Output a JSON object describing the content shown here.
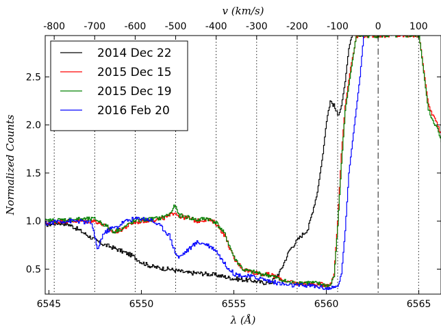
{
  "chart_data": {
    "type": "line",
    "title": "",
    "xlabel": "λ (Å)",
    "ylabel": "Normalized Counts",
    "x2label": "v (km/s)",
    "xlim": [
      6544.8,
      6566.2
    ],
    "ylim": [
      0.24,
      2.93
    ],
    "x_ticks": [
      6545,
      6550,
      6555,
      6560,
      6565
    ],
    "x_tick_labels": [
      "6545",
      "6550",
      "6555",
      "6560",
      "6565"
    ],
    "y_ticks": [
      0.5,
      1.0,
      1.5,
      2.0,
      2.5
    ],
    "y_tick_labels": [
      "0.5",
      "1.0",
      "1.5",
      "2.0",
      "2.5"
    ],
    "v_rest_wavelength": 6562.8,
    "v_ticks": [
      -800,
      -700,
      -600,
      -500,
      -400,
      -300,
      -200,
      -100,
      0,
      100
    ],
    "v_tick_labels": [
      "-800",
      "-700",
      "-600",
      "-500",
      "-400",
      "-300",
      "-200",
      "-100",
      "0",
      "100"
    ],
    "grid": "vertical dotted lines at velocity ticks; dash-dot line at 0 km/s",
    "legend_position": "top-left",
    "series": [
      {
        "name": "2014 Dec 22",
        "color": "#000000",
        "x": [
          6544.8,
          6545.5,
          6546.0,
          6546.5,
          6547.0,
          6547.5,
          6547.9,
          6548.2,
          6548.5,
          6549.0,
          6549.5,
          6550.0,
          6550.5,
          6551.0,
          6551.5,
          6552.0,
          6552.5,
          6553.0,
          6553.5,
          6554.0,
          6554.5,
          6555.0,
          6555.5,
          6556.0,
          6556.5,
          6557.0,
          6557.5,
          6558.0,
          6558.5,
          6559.0,
          6559.5,
          6559.8,
          6560.0,
          6560.2,
          6560.4,
          6560.6,
          6560.8,
          6561.0,
          6561.2,
          6561.4
        ],
        "y": [
          0.96,
          0.98,
          0.97,
          0.92,
          0.86,
          0.8,
          0.76,
          0.74,
          0.72,
          0.68,
          0.64,
          0.57,
          0.53,
          0.51,
          0.5,
          0.48,
          0.46,
          0.46,
          0.45,
          0.44,
          0.42,
          0.4,
          0.39,
          0.38,
          0.36,
          0.36,
          0.48,
          0.7,
          0.82,
          0.92,
          1.3,
          1.7,
          2.05,
          2.25,
          2.2,
          2.1,
          2.2,
          2.45,
          2.8,
          2.93
        ]
      },
      {
        "name": "2015 Dec 15",
        "color": "#ff0000",
        "x": [
          6544.8,
          6545.5,
          6546.5,
          6547.5,
          6548.0,
          6548.5,
          6549.0,
          6549.5,
          6550.0,
          6550.5,
          6551.0,
          6551.5,
          6551.8,
          6552.0,
          6552.5,
          6553.0,
          6553.5,
          6554.0,
          6554.5,
          6555.0,
          6555.5,
          6556.0,
          6556.5,
          6557.0,
          6557.5,
          6558.0,
          6558.5,
          6559.0,
          6559.5,
          6560.0,
          6560.2,
          6560.4,
          6560.6,
          6560.8,
          6561.0,
          6561.3,
          6561.6,
          6565.0,
          6565.5,
          6566.0,
          6566.2
        ],
        "y": [
          0.98,
          1.0,
          1.0,
          1.0,
          0.95,
          0.88,
          0.92,
          0.98,
          1.0,
          1.01,
          1.02,
          1.05,
          1.1,
          1.05,
          1.03,
          1.0,
          1.02,
          0.98,
          0.85,
          0.6,
          0.5,
          0.47,
          0.45,
          0.44,
          0.4,
          0.36,
          0.35,
          0.35,
          0.34,
          0.34,
          0.34,
          0.45,
          1.0,
          1.7,
          2.2,
          2.6,
          2.93,
          2.93,
          2.2,
          2.0,
          1.9
        ]
      },
      {
        "name": "2015 Dec 19",
        "color": "#008000",
        "x": [
          6544.8,
          6545.5,
          6546.5,
          6547.5,
          6548.0,
          6548.5,
          6549.0,
          6549.5,
          6550.0,
          6550.5,
          6551.0,
          6551.5,
          6551.8,
          6552.0,
          6552.5,
          6553.0,
          6553.5,
          6554.0,
          6554.5,
          6555.0,
          6555.5,
          6556.0,
          6556.5,
          6557.0,
          6557.5,
          6558.0,
          6558.5,
          6559.0,
          6559.5,
          6560.0,
          6560.2,
          6560.4,
          6560.6,
          6560.8,
          6561.0,
          6561.3,
          6561.6,
          6565.0,
          6565.5,
          6566.0,
          6566.2
        ],
        "y": [
          1.0,
          1.01,
          1.02,
          1.02,
          0.96,
          0.89,
          0.93,
          0.99,
          1.01,
          1.02,
          1.03,
          1.07,
          1.16,
          1.06,
          1.04,
          1.01,
          1.03,
          0.99,
          0.86,
          0.62,
          0.49,
          0.47,
          0.45,
          0.43,
          0.39,
          0.36,
          0.36,
          0.36,
          0.35,
          0.33,
          0.33,
          0.42,
          0.95,
          1.6,
          2.15,
          2.55,
          2.93,
          2.93,
          2.15,
          1.95,
          1.82
        ]
      },
      {
        "name": "2016 Feb 20",
        "color": "#0000ff",
        "x": [
          6544.8,
          6545.5,
          6546.5,
          6547.3,
          6547.6,
          6547.9,
          6548.3,
          6548.7,
          6549.0,
          6549.5,
          6550.0,
          6550.5,
          6551.0,
          6551.5,
          6551.8,
          6552.0,
          6552.5,
          6553.0,
          6553.5,
          6554.0,
          6554.5,
          6555.0,
          6555.5,
          6556.0,
          6556.5,
          6557.0,
          6557.5,
          6558.0,
          6558.5,
          6559.0,
          6559.5,
          6560.0,
          6560.3,
          6560.6,
          6560.8,
          6561.0,
          6561.2,
          6561.5,
          6561.8,
          6562.0
        ],
        "y": [
          0.97,
          1.0,
          1.0,
          0.98,
          0.7,
          0.86,
          0.92,
          0.94,
          0.99,
          1.02,
          1.03,
          1.01,
          0.95,
          0.85,
          0.68,
          0.62,
          0.7,
          0.78,
          0.76,
          0.7,
          0.55,
          0.45,
          0.43,
          0.42,
          0.4,
          0.37,
          0.35,
          0.33,
          0.33,
          0.33,
          0.32,
          0.3,
          0.3,
          0.32,
          0.45,
          0.9,
          1.5,
          2.0,
          2.5,
          2.93
        ]
      }
    ]
  }
}
